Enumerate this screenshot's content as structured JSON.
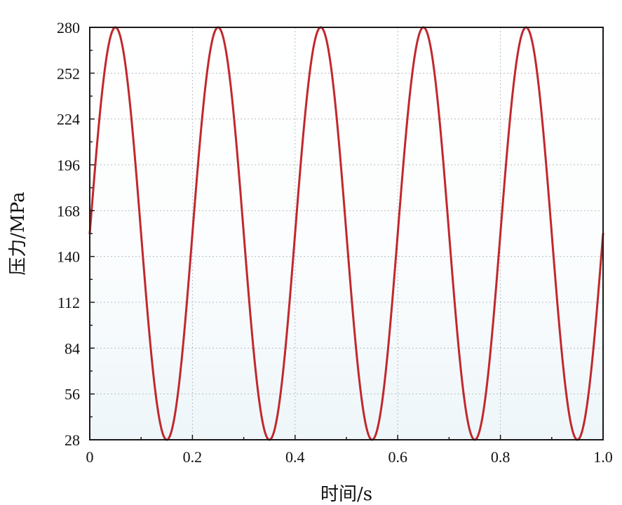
{
  "chart_data": {
    "type": "line",
    "title": "",
    "xlabel": "时间/s",
    "ylabel": "压力/MPa",
    "xlim": [
      0,
      1.0
    ],
    "ylim": [
      28,
      280
    ],
    "xticks": [
      "0",
      "0.2",
      "0.4",
      "0.6",
      "0.8",
      "1.0"
    ],
    "yticks": [
      "28",
      "56",
      "84",
      "112",
      "140",
      "168",
      "196",
      "224",
      "252",
      "280"
    ],
    "grid": true,
    "series": [
      {
        "color": "#c0282d",
        "waveform": "sine",
        "frequency_hz": 5,
        "mean": 154,
        "amplitude": 126,
        "phase_at_x0": 0,
        "x": [
          0,
          0.05,
          0.15,
          0.25,
          0.35,
          0.45,
          0.55,
          0.65,
          0.75,
          0.85,
          0.95,
          1.0
        ],
        "values": [
          154,
          280,
          28,
          280,
          28,
          280,
          28,
          280,
          28,
          280,
          28,
          154
        ]
      }
    ]
  }
}
